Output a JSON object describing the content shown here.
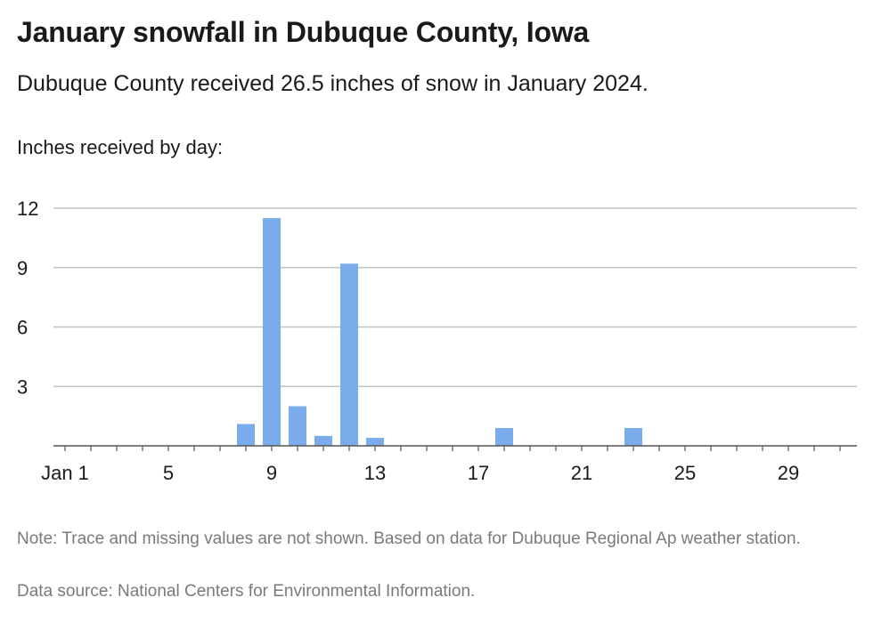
{
  "chart_data": {
    "type": "bar",
    "title": "January snowfall in Dubuque County, Iowa",
    "subtitle": "Dubuque County received 26.5 inches of snow in January 2024.",
    "ylabel": "Inches received by day:",
    "xlabel": "",
    "x_ticks": [
      {
        "day": 1,
        "label": "Jan 1"
      },
      {
        "day": 5,
        "label": "5"
      },
      {
        "day": 9,
        "label": "9"
      },
      {
        "day": 13,
        "label": "13"
      },
      {
        "day": 17,
        "label": "17"
      },
      {
        "day": 21,
        "label": "21"
      },
      {
        "day": 25,
        "label": "25"
      },
      {
        "day": 29,
        "label": "29"
      }
    ],
    "y_ticks": [
      3,
      6,
      9,
      12
    ],
    "ylim": [
      0,
      12
    ],
    "xlim": [
      1,
      31
    ],
    "grid": true,
    "bar_color": "#7aabeb",
    "days": [
      8,
      9,
      10,
      11,
      12,
      13,
      18,
      23
    ],
    "values": [
      1.1,
      11.5,
      2.0,
      0.5,
      9.2,
      0.4,
      0.9,
      0.9
    ]
  },
  "note": "Note: Trace and missing values are not shown. Based on data for Dubuque Regional Ap weather station.",
  "source": "Data source: National Centers for Environmental Information."
}
